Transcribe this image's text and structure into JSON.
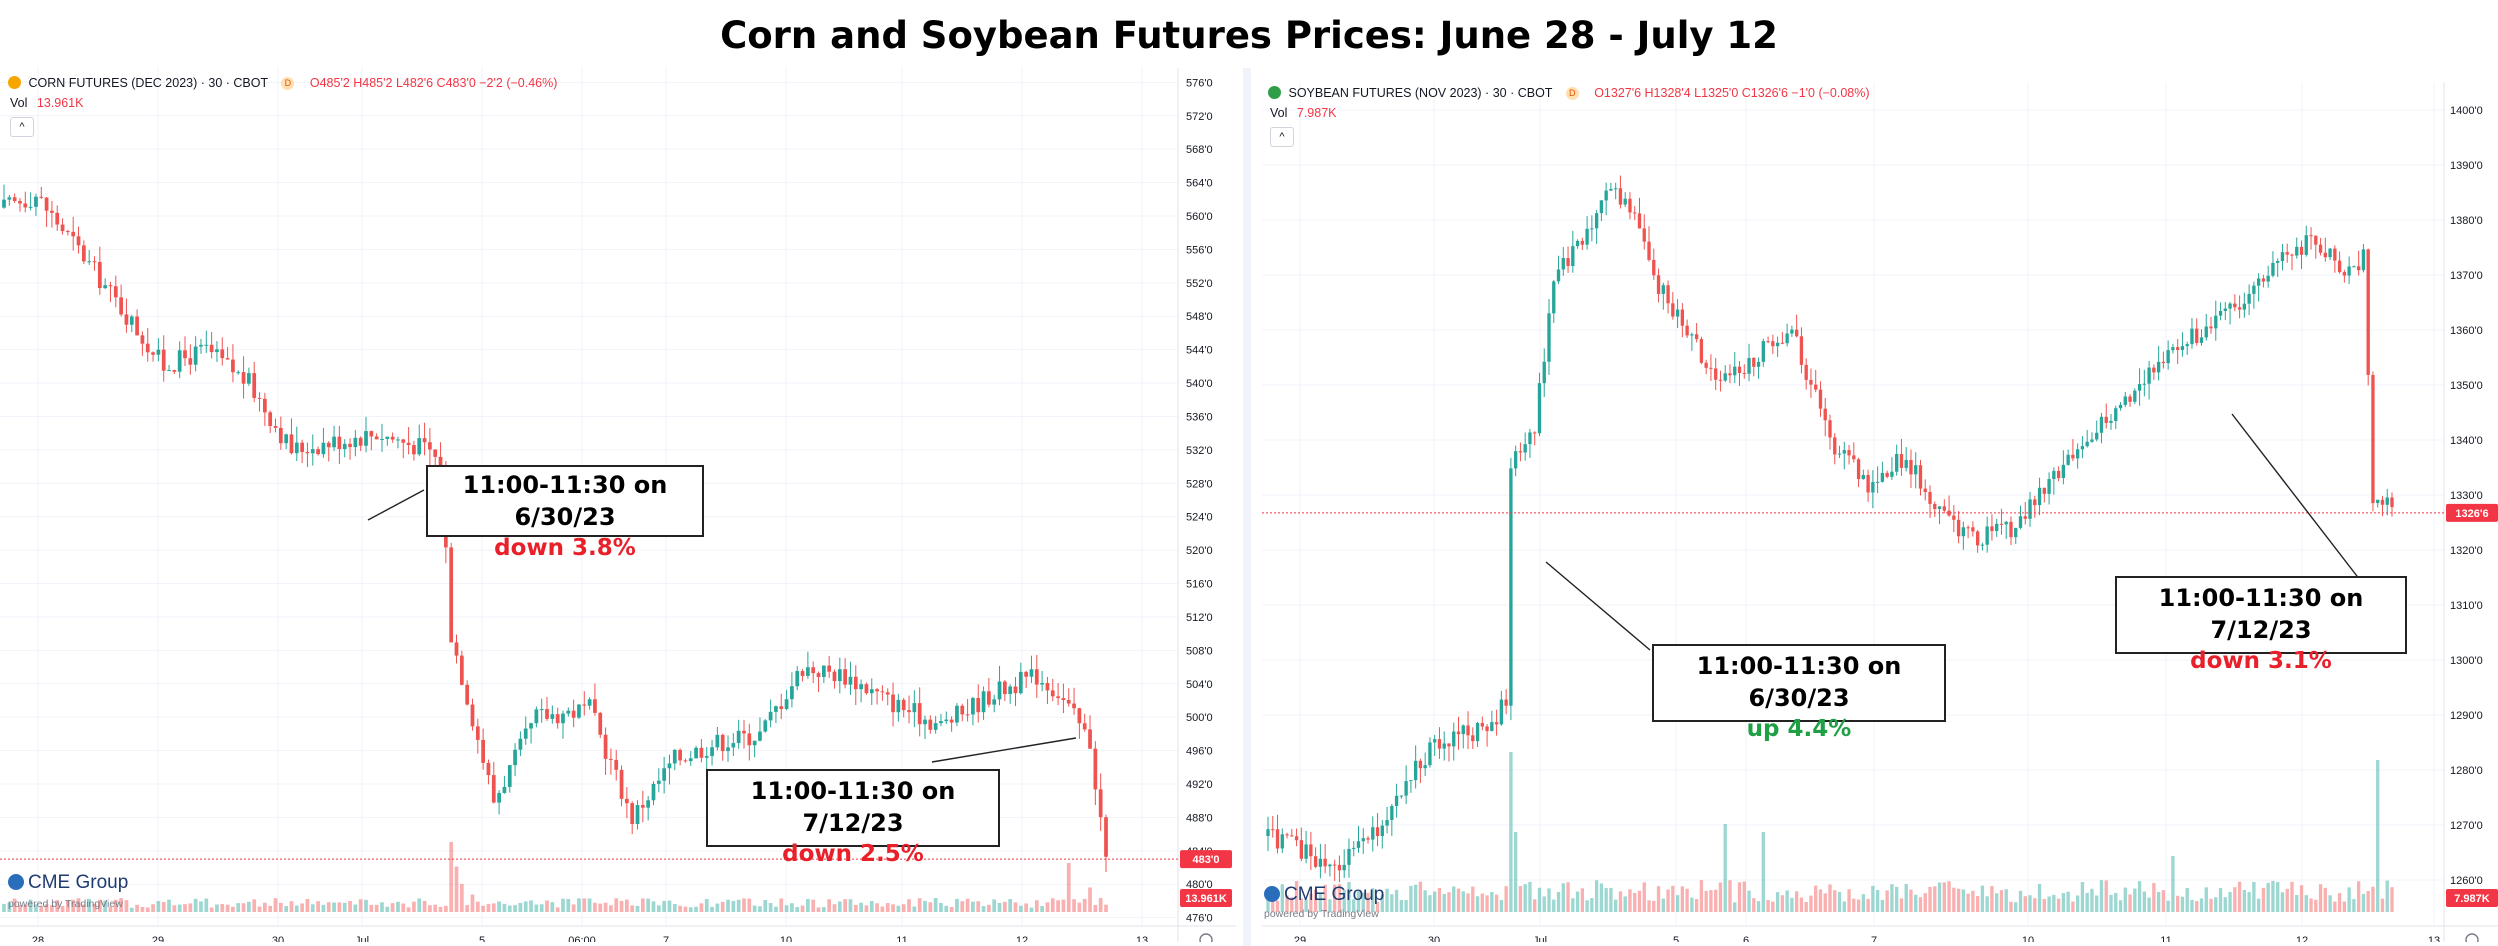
{
  "title": "Corn and Soybean Futures Prices: June 28 - July 12",
  "colors": {
    "up": "#26a69a",
    "down": "#ef5350",
    "price_line": "#f23645",
    "grid": "#f0f3fa",
    "annotation_red": "#e8202a",
    "annotation_green": "#1fa045"
  },
  "chart_data": [
    {
      "type": "candlestick",
      "symbol_label": "CORN FUTURES (DEC 2023) · 30 · CBOT",
      "symbol_icon": "corn-badge-icon",
      "interval_badge": "D",
      "ohlc_text": "O485'2 H485'2 L482'6 C483'0 −2'2 (−0.46%)",
      "vol_label": "Vol",
      "vol_value": "13.961K",
      "price_label": "483'0",
      "price_value": 483,
      "vol_badge": "13.961K",
      "y_ticks": [
        {
          "v": 476,
          "t": "476'0"
        },
        {
          "v": 480,
          "t": "480'0"
        },
        {
          "v": 484,
          "t": "484'0"
        },
        {
          "v": 488,
          "t": "488'0"
        },
        {
          "v": 492,
          "t": "492'0"
        },
        {
          "v": 496,
          "t": "496'0"
        },
        {
          "v": 500,
          "t": "500'0"
        },
        {
          "v": 504,
          "t": "504'0"
        },
        {
          "v": 508,
          "t": "508'0"
        },
        {
          "v": 512,
          "t": "512'0"
        },
        {
          "v": 516,
          "t": "516'0"
        },
        {
          "v": 520,
          "t": "520'0"
        },
        {
          "v": 524,
          "t": "524'0"
        },
        {
          "v": 528,
          "t": "528'0"
        },
        {
          "v": 532,
          "t": "532'0"
        },
        {
          "v": 536,
          "t": "536'0"
        },
        {
          "v": 540,
          "t": "540'0"
        },
        {
          "v": 544,
          "t": "544'0"
        },
        {
          "v": 548,
          "t": "548'0"
        },
        {
          "v": 552,
          "t": "552'0"
        },
        {
          "v": 556,
          "t": "556'0"
        },
        {
          "v": 560,
          "t": "560'0"
        },
        {
          "v": 564,
          "t": "564'0"
        },
        {
          "v": 568,
          "t": "568'0"
        },
        {
          "v": 572,
          "t": "572'0"
        },
        {
          "v": 576,
          "t": "576'0"
        }
      ],
      "ylim": [
        475,
        577
      ],
      "x_labels": [
        "28",
        "29",
        "30",
        "Jul",
        "5",
        "06:00",
        "7",
        "10",
        "11",
        "12",
        "13"
      ],
      "n_bars": 205,
      "price_path": [
        [
          0,
          561
        ],
        [
          6,
          562.5
        ],
        [
          14,
          556
        ],
        [
          22,
          549
        ],
        [
          30,
          542
        ],
        [
          38,
          544
        ],
        [
          46,
          540
        ],
        [
          54,
          532
        ],
        [
          62,
          533
        ],
        [
          70,
          534
        ],
        [
          80,
          532
        ],
        [
          82,
          530
        ],
        [
          84,
          510
        ],
        [
          88,
          500
        ],
        [
          92,
          490
        ],
        [
          100,
          500
        ],
        [
          110,
          501
        ],
        [
          118,
          488
        ],
        [
          126,
          495
        ],
        [
          134,
          497
        ],
        [
          142,
          498
        ],
        [
          150,
          506
        ],
        [
          158,
          505
        ],
        [
          166,
          502
        ],
        [
          176,
          499
        ],
        [
          186,
          503
        ],
        [
          194,
          505
        ],
        [
          198,
          503
        ],
        [
          204,
          497
        ],
        [
          207,
          483
        ]
      ],
      "volume_spikes": [
        [
          84,
          1.0
        ],
        [
          85,
          0.65
        ],
        [
          86,
          0.4
        ],
        [
          88,
          0.25
        ],
        [
          200,
          0.7
        ],
        [
          204,
          0.35
        ]
      ],
      "annotations": [
        {
          "line1": "11:00-11:30 on 6/30/23",
          "line2": "down 3.8%",
          "tone": "red"
        },
        {
          "line1": "11:00-11:30 on 7/12/23",
          "line2": "down 2.5%",
          "tone": "red"
        }
      ]
    },
    {
      "type": "candlestick",
      "symbol_label": "SOYBEAN FUTURES (NOV 2023) · 30 · CBOT",
      "symbol_icon": "soybean-badge-icon",
      "interval_badge": "D",
      "ohlc_text": "O1327'6 H1328'4 L1325'0 C1326'6 −1'0 (−0.08%)",
      "vol_label": "Vol",
      "vol_value": "7.987K",
      "price_label": "1326'6",
      "price_value": 1326.75,
      "vol_badge": "7.987K",
      "y_ticks": [
        {
          "v": 1260,
          "t": "1260'0"
        },
        {
          "v": 1270,
          "t": "1270'0"
        },
        {
          "v": 1280,
          "t": "1280'0"
        },
        {
          "v": 1290,
          "t": "1290'0"
        },
        {
          "v": 1300,
          "t": "1300'0"
        },
        {
          "v": 1310,
          "t": "1310'0"
        },
        {
          "v": 1320,
          "t": "1320'0"
        },
        {
          "v": 1330,
          "t": "1330'0"
        },
        {
          "v": 1340,
          "t": "1340'0"
        },
        {
          "v": 1350,
          "t": "1350'0"
        },
        {
          "v": 1360,
          "t": "1360'0"
        },
        {
          "v": 1370,
          "t": "1370'0"
        },
        {
          "v": 1380,
          "t": "1380'0"
        },
        {
          "v": 1390,
          "t": "1390'0"
        },
        {
          "v": 1400,
          "t": "1400'0"
        }
      ],
      "ylim": [
        1252,
        1404
      ],
      "x_labels": [
        "29",
        "30",
        "Jul",
        "5",
        "6",
        "7",
        "10",
        "11",
        "12",
        "13"
      ],
      "n_bars": 205,
      "price_path": [
        [
          0,
          1268
        ],
        [
          6,
          1266
        ],
        [
          14,
          1262
        ],
        [
          22,
          1268
        ],
        [
          28,
          1276
        ],
        [
          34,
          1284
        ],
        [
          40,
          1286
        ],
        [
          46,
          1288
        ],
        [
          50,
          1292
        ],
        [
          51,
          1335
        ],
        [
          56,
          1342
        ],
        [
          60,
          1370
        ],
        [
          66,
          1376
        ],
        [
          72,
          1386
        ],
        [
          76,
          1383
        ],
        [
          82,
          1368
        ],
        [
          88,
          1360
        ],
        [
          94,
          1350
        ],
        [
          102,
          1355
        ],
        [
          110,
          1360
        ],
        [
          118,
          1340
        ],
        [
          126,
          1332
        ],
        [
          134,
          1337
        ],
        [
          140,
          1328
        ],
        [
          148,
          1322
        ],
        [
          156,
          1324
        ],
        [
          164,
          1332
        ],
        [
          172,
          1340
        ],
        [
          180,
          1347
        ],
        [
          188,
          1355
        ],
        [
          196,
          1360
        ],
        [
          204,
          1364
        ],
        [
          212,
          1374
        ],
        [
          220,
          1376
        ],
        [
          226,
          1371
        ],
        [
          230,
          1373
        ],
        [
          232,
          1330
        ],
        [
          236,
          1327
        ]
      ],
      "volume_spikes": [
        [
          51,
          1.0
        ],
        [
          52,
          0.5
        ],
        [
          96,
          0.55
        ],
        [
          104,
          0.5
        ],
        [
          190,
          0.35
        ],
        [
          233,
          0.95
        ]
      ],
      "annotations": [
        {
          "line1": "11:00-11:30 on 6/30/23",
          "line2": "up 4.4%",
          "tone": "green"
        },
        {
          "line1": "11:00-11:30 on 7/12/23",
          "line2": "down 3.1%",
          "tone": "red"
        }
      ]
    }
  ],
  "watermark": {
    "brand": "CME Group",
    "powered": "powered by TradingView"
  }
}
